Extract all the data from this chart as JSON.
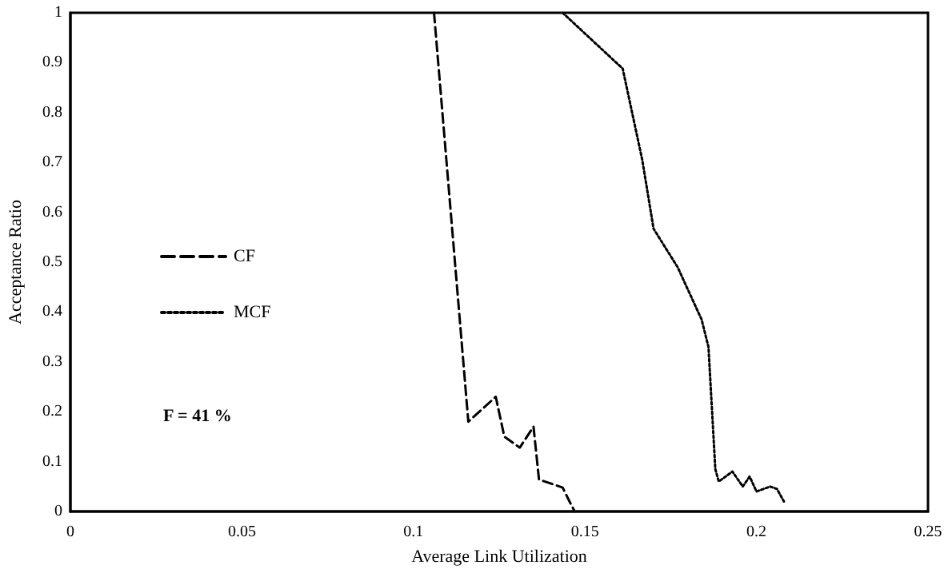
{
  "chart_data": {
    "type": "line",
    "xlabel": "Average Link Utilization",
    "ylabel": "Acceptance Ratio",
    "xlim": [
      0,
      0.25
    ],
    "xticks": [
      0,
      0.05,
      0.1,
      0.15,
      0.2,
      0.25
    ],
    "ylim": [
      0,
      1
    ],
    "yticks": [
      0,
      0.1,
      0.2,
      0.3,
      0.4,
      0.5,
      0.6,
      0.7,
      0.8,
      0.9,
      1
    ],
    "grid": false,
    "legend": "left",
    "marker": "none",
    "annotations": [
      "F = 41 %"
    ],
    "series": [
      {
        "name": "CF",
        "color": "#000000",
        "line_style": "dashed",
        "x": [
          0.106,
          0.116,
          0.124,
          0.1265,
          0.131,
          0.135,
          0.1366,
          0.1435,
          0.1455,
          0.147
        ],
        "values": [
          1,
          0.18,
          0.23,
          0.15,
          0.128,
          0.17,
          0.064,
          0.048,
          0.02,
          0
        ]
      },
      {
        "name": "MCF",
        "color": "#000000",
        "line_style": "dotted",
        "x": [
          0.1435,
          0.161,
          0.1667,
          0.17,
          0.177,
          0.184,
          0.186,
          0.188,
          0.189,
          0.193,
          0.196,
          0.198,
          0.2,
          0.204,
          0.206,
          0.208
        ],
        "values": [
          1,
          0.888,
          0.705,
          0.567,
          0.49,
          0.385,
          0.33,
          0.085,
          0.06,
          0.08,
          0.05,
          0.07,
          0.04,
          0.05,
          0.045,
          0.02
        ]
      }
    ]
  }
}
